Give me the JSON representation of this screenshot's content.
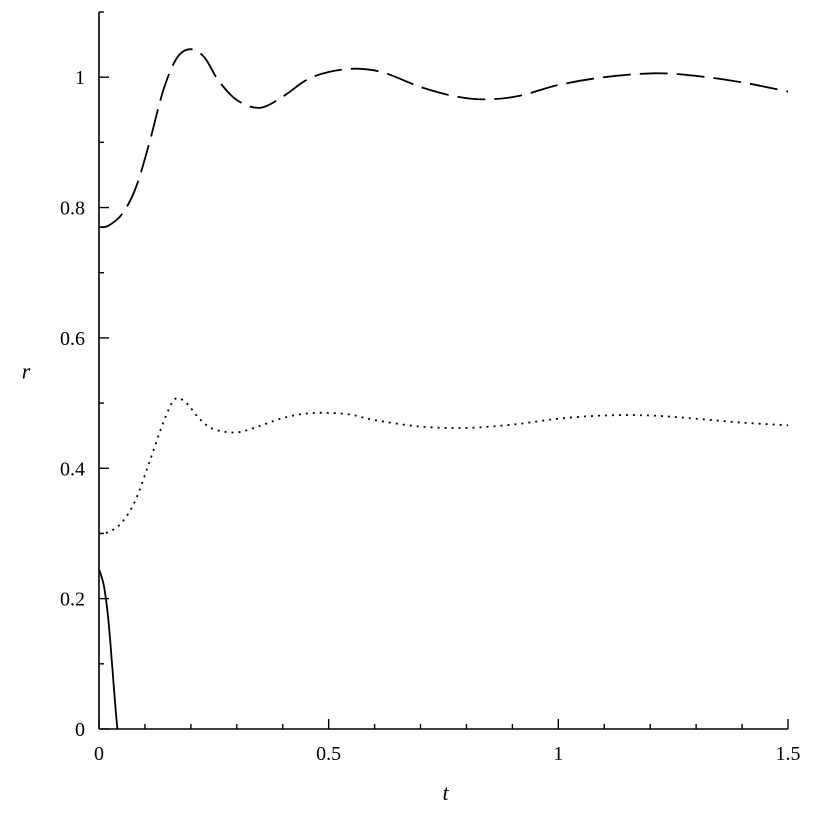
{
  "chart_data": {
    "type": "line",
    "title": "",
    "xlabel": "t",
    "ylabel": "r",
    "xlim": [
      0,
      1.5
    ],
    "ylim": [
      0,
      1.1
    ],
    "x_ticks": [
      0,
      0.5,
      1,
      1.5
    ],
    "x_tick_labels": [
      "0",
      "0.5",
      "1",
      "1.5"
    ],
    "x_minor_ticks": [
      0.1,
      0.2,
      0.3,
      0.4,
      0.6,
      0.7,
      0.8,
      0.9,
      1.1,
      1.2,
      1.3,
      1.4
    ],
    "y_ticks": [
      0,
      0.2,
      0.4,
      0.6,
      0.8,
      1
    ],
    "y_tick_labels": [
      "0",
      "0.2",
      "0.4",
      "0.6",
      "0.8",
      "1"
    ],
    "y_minor_ticks": [
      0.1,
      0.3,
      0.5,
      0.7,
      0.9,
      1.1
    ],
    "grid": false,
    "series": [
      {
        "style": "dashed",
        "color": "#000000",
        "x": [
          0,
          0.02,
          0.05,
          0.08,
          0.11,
          0.14,
          0.17,
          0.2,
          0.23,
          0.26,
          0.3,
          0.35,
          0.4,
          0.45,
          0.5,
          0.56,
          0.62,
          0.7,
          0.78,
          0.85,
          0.92,
          1.0,
          1.1,
          1.21,
          1.3,
          1.4,
          1.5
        ],
        "y": [
          0.77,
          0.772,
          0.79,
          0.83,
          0.9,
          0.98,
          1.03,
          1.043,
          1.03,
          0.995,
          0.965,
          0.953,
          0.97,
          0.995,
          1.008,
          1.013,
          1.007,
          0.985,
          0.97,
          0.966,
          0.972,
          0.988,
          1.0,
          1.006,
          1.002,
          0.992,
          0.978
        ]
      },
      {
        "style": "dotted",
        "color": "#000000",
        "x": [
          0,
          0.02,
          0.05,
          0.08,
          0.11,
          0.14,
          0.165,
          0.19,
          0.22,
          0.25,
          0.3,
          0.35,
          0.4,
          0.45,
          0.5,
          0.55,
          0.6,
          0.7,
          0.8,
          0.9,
          1.0,
          1.1,
          1.2,
          1.3,
          1.4,
          1.5
        ],
        "y": [
          0.3,
          0.302,
          0.317,
          0.352,
          0.41,
          0.47,
          0.506,
          0.5,
          0.475,
          0.46,
          0.455,
          0.465,
          0.477,
          0.484,
          0.485,
          0.482,
          0.474,
          0.464,
          0.462,
          0.467,
          0.476,
          0.481,
          0.481,
          0.476,
          0.47,
          0.466
        ]
      },
      {
        "style": "solid",
        "color": "#000000",
        "x": [
          0,
          0.005,
          0.01,
          0.015,
          0.02,
          0.025,
          0.03,
          0.035,
          0.04
        ],
        "y": [
          0.245,
          0.235,
          0.222,
          0.2,
          0.17,
          0.13,
          0.085,
          0.04,
          0.0
        ]
      }
    ]
  }
}
